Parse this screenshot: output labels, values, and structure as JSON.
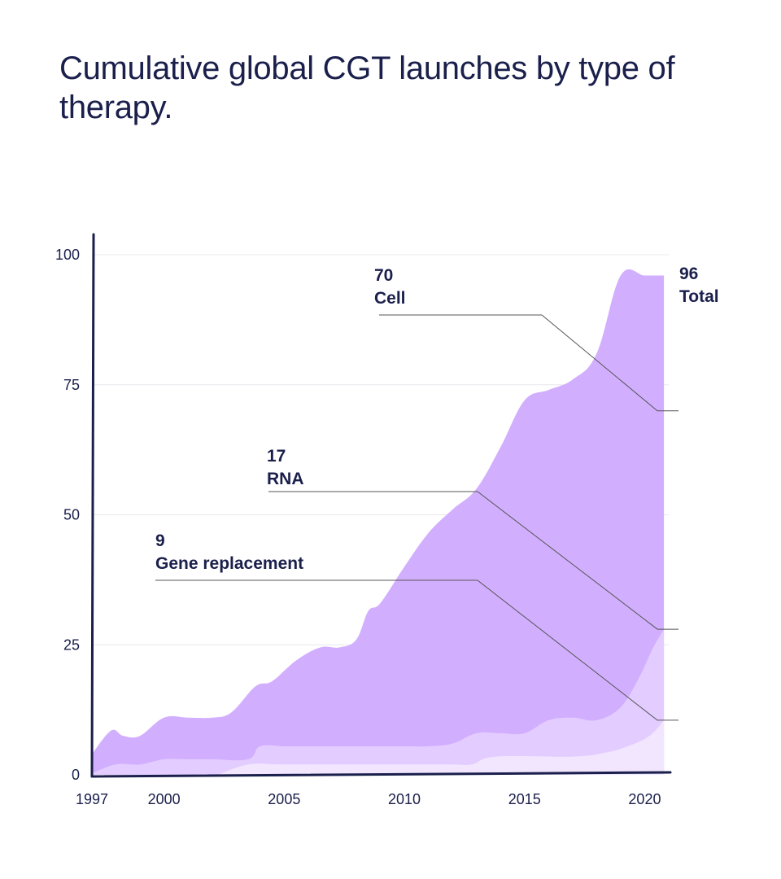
{
  "title": "Cumulative global CGT launches by type of therapy.",
  "chart_data": {
    "type": "area",
    "title": "Cumulative global CGT launches by type of therapy.",
    "xlabel": "",
    "ylabel": "",
    "xlim": [
      1997,
      2021
    ],
    "ylim": [
      0,
      100
    ],
    "x_ticks": [
      1997,
      2000,
      2005,
      2010,
      2015,
      2020
    ],
    "y_ticks": [
      0,
      25,
      50,
      75,
      100
    ],
    "grid": true,
    "colors": {
      "total": "#d2aeff",
      "rna": "#e3ccff",
      "gene": "#f2e6ff",
      "axis": "#1a1f4b",
      "grid": "#e8e8ee",
      "leader": "#555555"
    },
    "series": [
      {
        "key": "total",
        "x": [
          1997,
          1997.8,
          1998.3,
          1999,
          2000,
          2001,
          2002,
          2002.8,
          2003.8,
          2004.5,
          2005.5,
          2006.5,
          2007.3,
          2008,
          2008.5,
          2009,
          2010,
          2011,
          2012,
          2013,
          2014,
          2015,
          2016,
          2017,
          2018,
          2019,
          2020,
          2020.8
        ],
        "values": [
          4,
          8.5,
          7.5,
          7.5,
          11,
          11,
          11,
          12,
          17,
          18,
          22,
          24.5,
          24.5,
          26,
          31.5,
          33,
          40,
          46.5,
          51,
          55,
          63,
          72,
          74,
          76,
          81,
          96,
          96,
          96
        ]
      },
      {
        "key": "rna",
        "x": [
          1997,
          1998,
          1999,
          2000,
          2001,
          2002,
          2003.5,
          2004,
          2005,
          2006,
          2007,
          2008,
          2009,
          2010,
          2011,
          2012,
          2013,
          2014,
          2015,
          2016,
          2017,
          2018,
          2019,
          2019.8,
          2020.3,
          2020.8
        ],
        "values": [
          0.3,
          2,
          2,
          3,
          3,
          3,
          3,
          5.5,
          5.5,
          5.5,
          5.5,
          5.5,
          5.5,
          5.5,
          5.5,
          6,
          8,
          8,
          8,
          10.5,
          11,
          10.5,
          13,
          19,
          24,
          28
        ]
      },
      {
        "key": "gene",
        "x": [
          1997,
          2001.8,
          2002.2,
          2003.5,
          2005,
          2008,
          2011.8,
          2012.8,
          2013.8,
          2017,
          2018.3,
          2019.3,
          2020.2,
          2020.8
        ],
        "values": [
          0,
          0,
          0,
          2,
          2,
          2,
          2,
          2,
          3.5,
          3.5,
          4.2,
          5.5,
          7.5,
          10.5
        ]
      }
    ],
    "annotations": [
      {
        "key": "cell",
        "value": "70",
        "label": "Cell",
        "y": 70
      },
      {
        "key": "rna",
        "value": "17",
        "label": "RNA",
        "y": 28
      },
      {
        "key": "gene",
        "value": "9",
        "label": "Gene replacement",
        "y": 10.5
      },
      {
        "key": "total",
        "value": "96",
        "label": "Total"
      }
    ]
  }
}
